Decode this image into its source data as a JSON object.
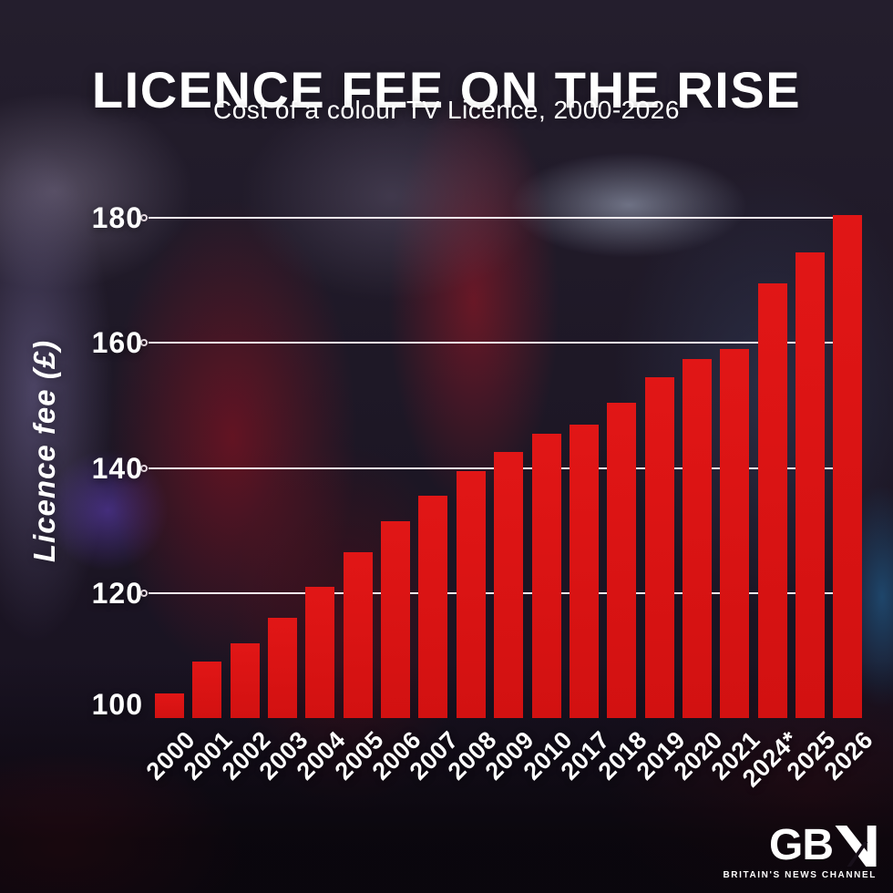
{
  "header": {
    "title": "LICENCE FEE ON THE RISE",
    "subtitle": "Cost of a colour TV Licence, 2000-2026"
  },
  "chart_data": {
    "type": "bar",
    "title": "LICENCE FEE ON THE RISE",
    "subtitle": "Cost of a colour TV Licence, 2000-2026",
    "xlabel": "",
    "ylabel": "Licence fee (£)",
    "categories": [
      "2000",
      "2001",
      "2002",
      "2003",
      "2004",
      "2005",
      "2006",
      "2007",
      "2008",
      "2009",
      "2010",
      "2017",
      "2018",
      "2019",
      "2020",
      "2021",
      "2024*",
      "2025",
      "2026"
    ],
    "values": [
      104,
      109,
      112,
      116,
      121,
      126.5,
      131.5,
      135.5,
      139.5,
      142.5,
      145.5,
      147,
      150.5,
      154.5,
      157.5,
      159,
      169.5,
      174.5,
      180.5
    ],
    "y_ticks": [
      100,
      120,
      140,
      160,
      180
    ],
    "ylim": [
      100,
      182
    ],
    "grid": "horizontal gridlines at 120/140/160/180 with hollow circle markers at left end, drawn behind bars",
    "legend": "none",
    "bar_color": "#d81414",
    "gridline_color": "#faecf3",
    "label_color": "#ffffff"
  },
  "logo": {
    "text_gb": "GB",
    "text_n": "N",
    "tagline": "BRITAIN'S NEWS CHANNEL"
  },
  "colors": {
    "background_base": "#1a1420",
    "bar": "#d81414",
    "text": "#ffffff"
  }
}
